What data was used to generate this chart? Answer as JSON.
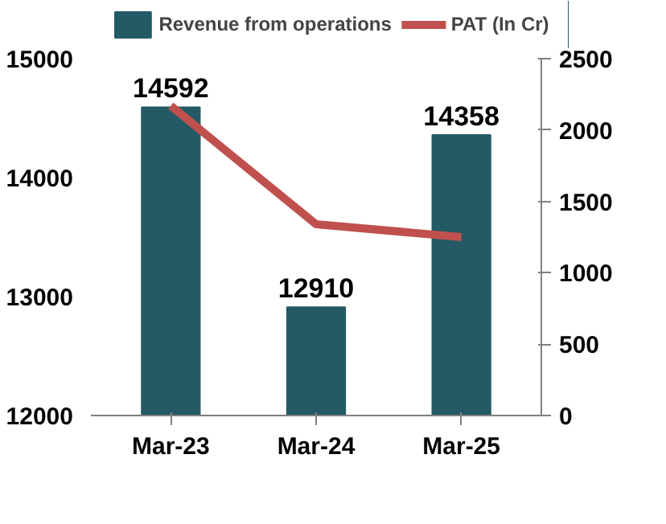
{
  "chart_data": {
    "type": "bar",
    "categories": [
      "Mar-23",
      "Mar-24",
      "Mar-25"
    ],
    "series": [
      {
        "name": "Revenue from operations",
        "color": "#245a66",
        "values": [
          14592,
          12910,
          14358
        ],
        "data_labels": true
      },
      {
        "name": "PAT (In Cr)",
        "type": "line",
        "axis": "y2",
        "color": "#c0504d",
        "values": [
          2170,
          1340,
          1250
        ]
      }
    ],
    "ylim": [
      12000,
      15000
    ],
    "yticks": [
      12000,
      13000,
      14000,
      15000
    ],
    "y2lim": [
      0,
      2500
    ],
    "y2ticks": [
      0,
      500,
      1000,
      1500,
      2000,
      2500
    ],
    "grid": false,
    "legend": "top",
    "marker": "none"
  }
}
